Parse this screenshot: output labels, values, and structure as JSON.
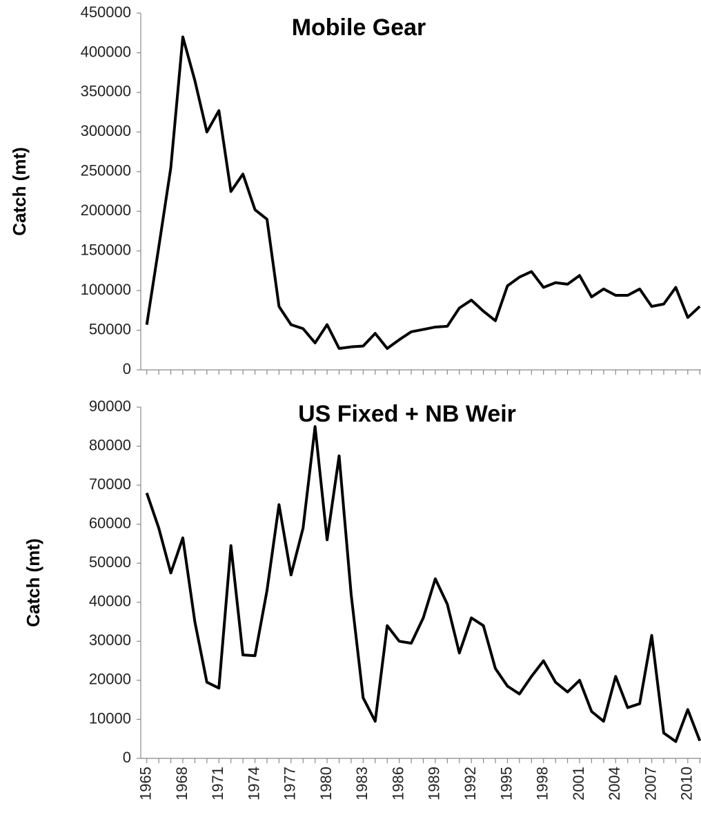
{
  "chart_data": [
    {
      "type": "line",
      "title": "Mobile Gear",
      "y_label": "Catch (mt)",
      "x": [
        1965,
        1966,
        1967,
        1968,
        1969,
        1970,
        1971,
        1972,
        1973,
        1974,
        1975,
        1976,
        1977,
        1978,
        1979,
        1980,
        1981,
        1982,
        1983,
        1984,
        1985,
        1986,
        1987,
        1988,
        1989,
        1990,
        1991,
        1992,
        1993,
        1994,
        1995,
        1996,
        1997,
        1998,
        1999,
        2000,
        2001,
        2002,
        2003,
        2004,
        2005,
        2006,
        2007,
        2008,
        2009,
        2010,
        2011
      ],
      "values": [
        57000,
        155000,
        255000,
        420000,
        365000,
        300000,
        327000,
        225000,
        247000,
        202000,
        190000,
        80000,
        57000,
        52000,
        34000,
        57000,
        27000,
        29000,
        30000,
        46000,
        27000,
        38000,
        48000,
        51000,
        54000,
        55000,
        78000,
        88000,
        74000,
        62000,
        106000,
        117000,
        124000,
        104000,
        110000,
        108000,
        119000,
        92000,
        102000,
        94000,
        94000,
        102000,
        80000,
        83000,
        104000,
        66000,
        80000
      ],
      "color": "#000000",
      "xlim": [
        1964.5,
        2011.1
      ],
      "ylim": [
        0,
        450000
      ],
      "yticks": [
        0,
        50000,
        100000,
        150000,
        200000,
        250000,
        300000,
        350000,
        400000,
        450000
      ]
    },
    {
      "type": "line",
      "title": "US Fixed + NB Weir",
      "y_label": "Catch (mt)",
      "x": [
        1965,
        1966,
        1967,
        1968,
        1969,
        1970,
        1971,
        1972,
        1973,
        1974,
        1975,
        1976,
        1977,
        1978,
        1979,
        1980,
        1981,
        1982,
        1983,
        1984,
        1985,
        1986,
        1987,
        1988,
        1989,
        1990,
        1991,
        1992,
        1993,
        1994,
        1995,
        1996,
        1997,
        1998,
        1999,
        2000,
        2001,
        2002,
        2003,
        2004,
        2005,
        2006,
        2007,
        2008,
        2009,
        2010,
        2011
      ],
      "values": [
        68000,
        59000,
        47500,
        56500,
        35000,
        19500,
        18000,
        54500,
        26500,
        26300,
        43000,
        65000,
        47000,
        59000,
        85000,
        56000,
        77500,
        42000,
        15500,
        9500,
        34000,
        30000,
        29500,
        36000,
        46000,
        39500,
        27000,
        36000,
        34000,
        23000,
        18500,
        16500,
        21000,
        25000,
        19500,
        17000,
        20000,
        12000,
        9500,
        21000,
        13000,
        14000,
        31500,
        6500,
        4300,
        12500,
        4500
      ],
      "color": "#000000",
      "xlim": [
        1964.5,
        2011.1
      ],
      "xticks": [
        1965,
        1968,
        1971,
        1974,
        1977,
        1980,
        1983,
        1986,
        1989,
        1992,
        1995,
        1998,
        2001,
        2004,
        2007,
        2010
      ],
      "ylim": [
        0,
        90000
      ],
      "yticks": [
        0,
        10000,
        20000,
        30000,
        40000,
        50000,
        60000,
        70000,
        80000,
        90000
      ]
    }
  ]
}
